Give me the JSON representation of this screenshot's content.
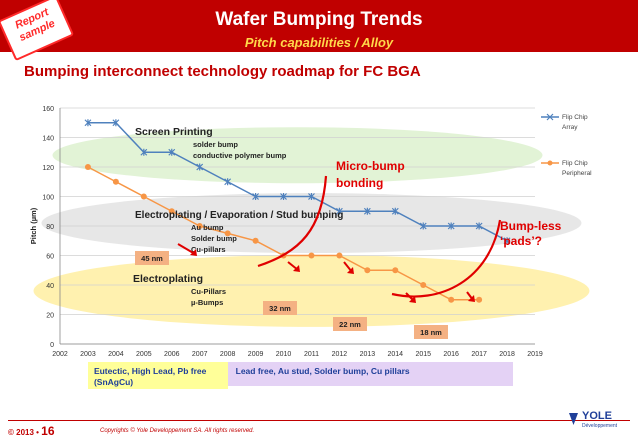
{
  "header": {
    "title": "Wafer Bumping Trends",
    "subtitle": "Pitch capabilities / Alloy",
    "stamp_line1": "Report",
    "stamp_line2": "sample"
  },
  "chart_title": "Bumping interconnect technology roadmap for FC BGA",
  "colors": {
    "header_bg": "#c00000",
    "subtitle": "#ffd84a",
    "series_array": "#4f81bd",
    "series_peripheral": "#f79646",
    "arrows": "#e00000",
    "label_box": "#f4b183",
    "region_green": "#e2f3d6",
    "region_gray": "#e6e6e6",
    "region_yellow": "#fff0a8",
    "alloy_yellow": "#ffff99",
    "alloy_purple": "#e4d2f5"
  },
  "chart_data": {
    "type": "line",
    "xlabel": "",
    "ylabel": "Pitch (µm)",
    "xlim": [
      2002,
      2019
    ],
    "ylim": [
      0,
      160
    ],
    "x_ticks": [
      2002,
      2003,
      2004,
      2005,
      2006,
      2007,
      2008,
      2009,
      2010,
      2011,
      2012,
      2013,
      2014,
      2015,
      2016,
      2017,
      2018,
      2019
    ],
    "y_ticks": [
      0,
      20,
      40,
      60,
      80,
      100,
      120,
      140,
      160
    ],
    "grid": "horizontal",
    "legend": "right",
    "series": [
      {
        "name": "Flip Chip Array",
        "marker": "asterisk",
        "x": [
          2003,
          2004,
          2005,
          2006,
          2007,
          2008,
          2009,
          2010,
          2011,
          2012,
          2013,
          2014,
          2015,
          2016,
          2017,
          2018
        ],
        "y": [
          150,
          150,
          130,
          130,
          120,
          110,
          100,
          100,
          100,
          90,
          90,
          90,
          80,
          80,
          80,
          70
        ]
      },
      {
        "name": "Flip Chip Peripheral",
        "marker": "circle",
        "x": [
          2003,
          2004,
          2005,
          2006,
          2007,
          2008,
          2009,
          2010,
          2011,
          2012,
          2013,
          2014,
          2015,
          2016,
          2017
        ],
        "y": [
          120,
          110,
          100,
          90,
          80,
          75,
          70,
          60,
          60,
          60,
          50,
          50,
          40,
          30,
          30
        ]
      }
    ],
    "annotations": {
      "screen_printing": "Screen Printing",
      "screen_items": [
        "solder bump",
        "conductive polymer bump"
      ],
      "electroplating_evap": "Electroplating / Evaporation / Stud bumping",
      "evap_items": [
        "Au bump",
        "Solder bump",
        "Cu-pillars"
      ],
      "electroplating": "Electroplating",
      "electro_items": [
        "Cu-Pillars",
        "µ-Bumps"
      ],
      "micro_bump": [
        "Micro-bump",
        "bonding"
      ],
      "bumpless": [
        "Bump-less",
        "‘pads’?"
      ],
      "pitch_labels": [
        "45 nm",
        "32 nm",
        "22 nm",
        "18 nm"
      ]
    },
    "alloy_bar": {
      "left": [
        "Eutectic, High Lead, Pb free",
        "(SnAgCu)"
      ],
      "right": "Lead free, Au stud, Solder bump, Cu pillars"
    }
  },
  "footer": {
    "page_prefix": "© 2013 •",
    "page_number": "16",
    "copyright": "Copyrights © Yole Developpement SA. All rights reserved.",
    "logo": "YOLE",
    "logo_sub": "Développement"
  }
}
